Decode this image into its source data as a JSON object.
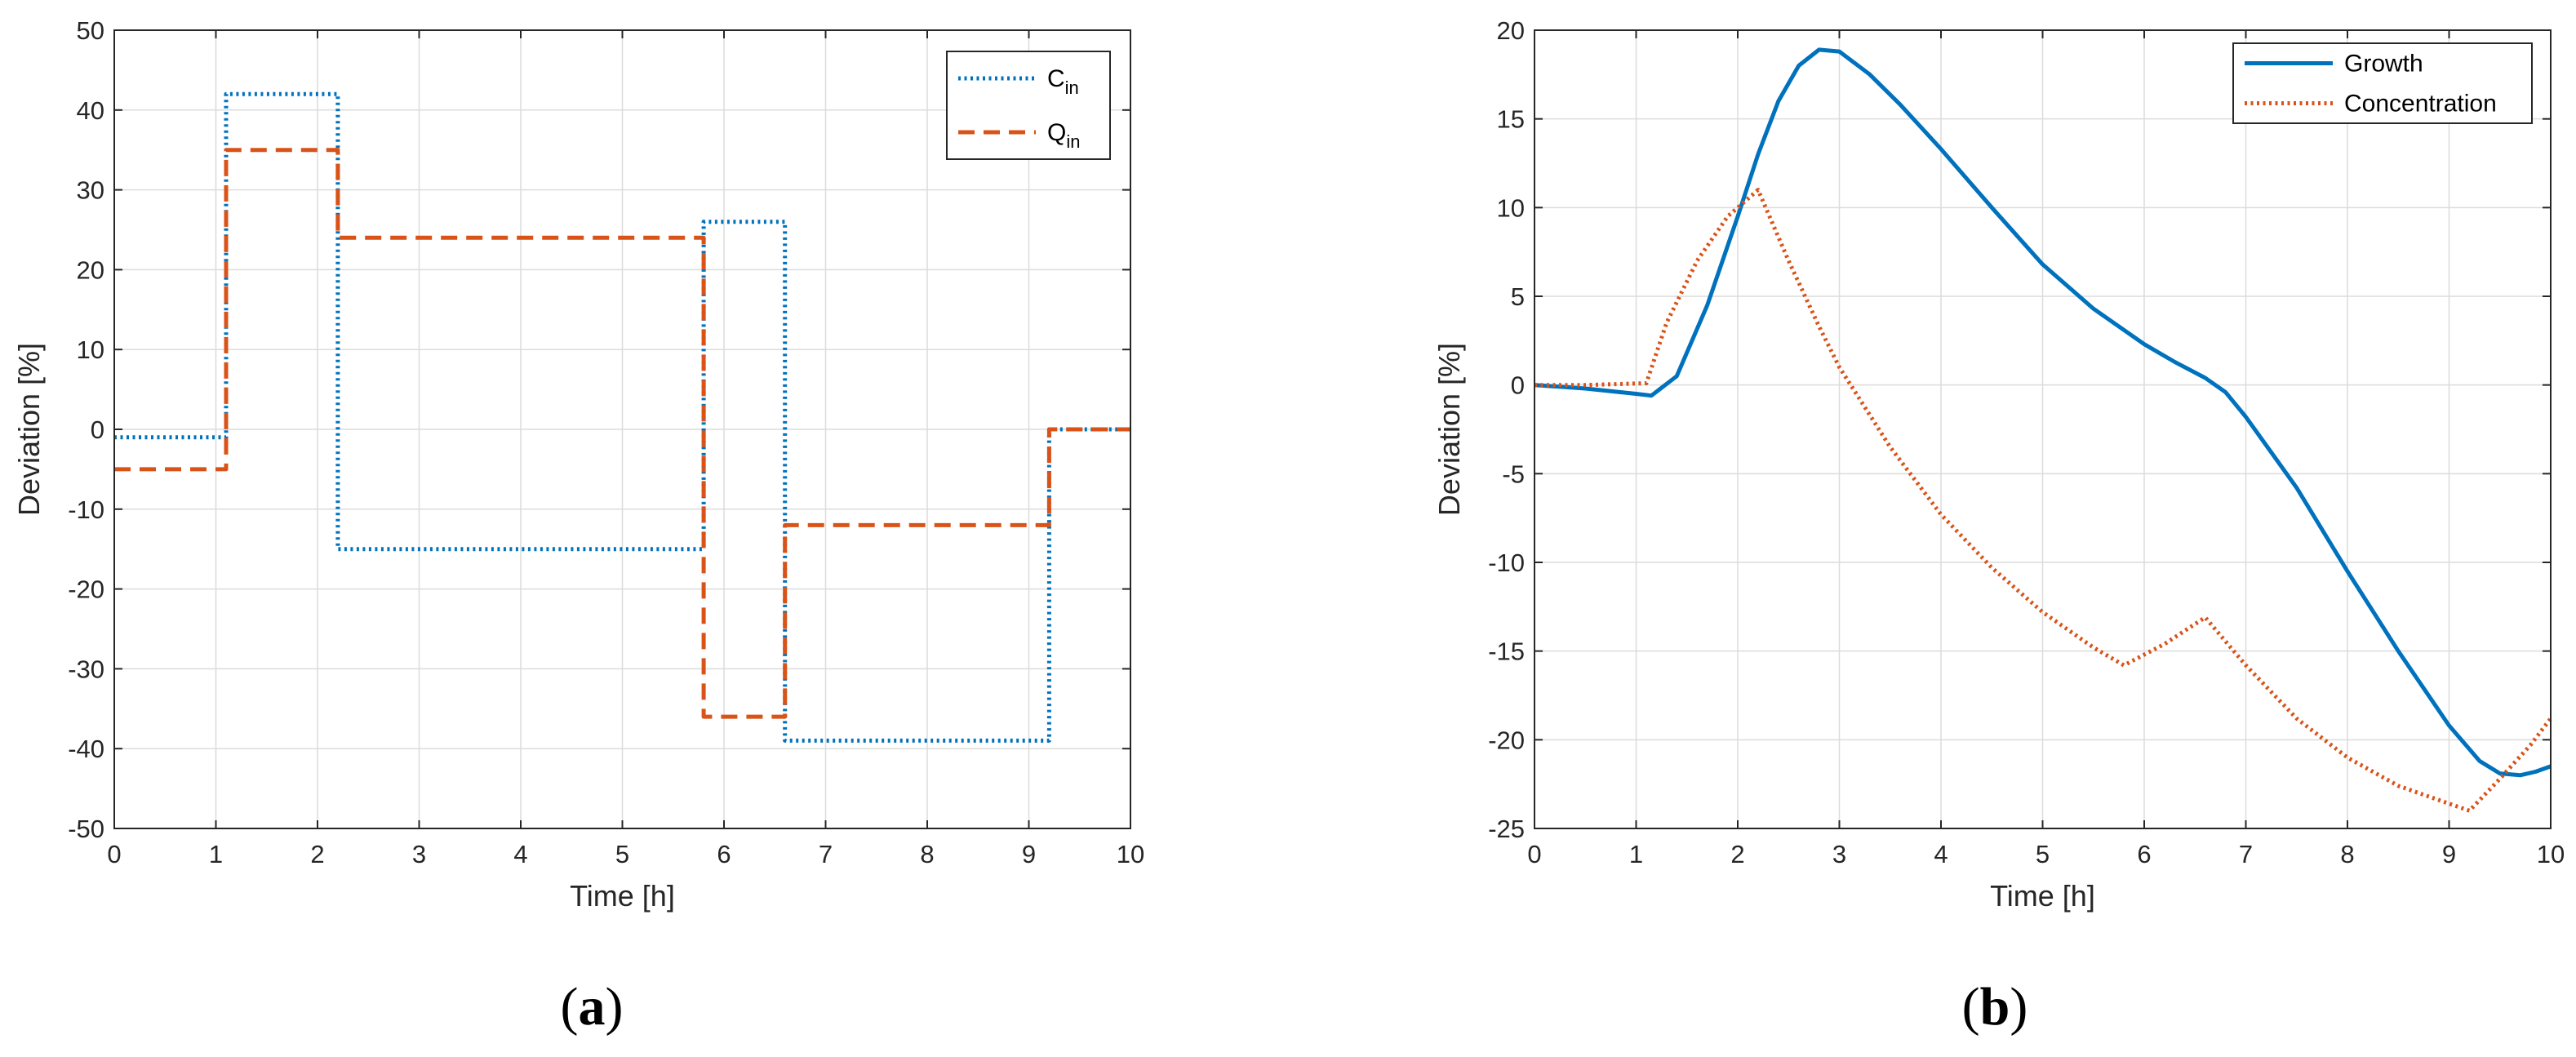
{
  "chart_data": [
    {
      "type": "line",
      "panel_label": "a",
      "xlabel": "Time [h]",
      "ylabel": "Deviation [%]",
      "xlim": [
        0,
        10
      ],
      "ylim": [
        -50,
        50
      ],
      "xticks": [
        0,
        1,
        2,
        3,
        4,
        5,
        6,
        7,
        8,
        9,
        10
      ],
      "yticks": [
        -50,
        -40,
        -30,
        -20,
        -10,
        0,
        10,
        20,
        30,
        40,
        50
      ],
      "grid": true,
      "legend_position": "top-right",
      "series": [
        {
          "name": "C",
          "name_subscript": "in",
          "style": "dotted",
          "color": "#0072BD",
          "x": [
            0,
            1.1,
            1.1,
            2.2,
            2.2,
            5.8,
            5.8,
            6.6,
            6.6,
            9.2,
            9.2,
            10
          ],
          "y": [
            -1,
            -1,
            42,
            42,
            -15,
            -15,
            26,
            26,
            -39,
            -39,
            0,
            0
          ]
        },
        {
          "name": "Q",
          "name_subscript": "in",
          "style": "dashed",
          "color": "#D95319",
          "x": [
            0,
            1.1,
            1.1,
            2.2,
            2.2,
            5.8,
            5.8,
            6.6,
            6.6,
            9.2,
            9.2,
            10
          ],
          "y": [
            -5,
            -5,
            35,
            35,
            24,
            24,
            -36,
            -36,
            -12,
            -12,
            0,
            0
          ]
        }
      ]
    },
    {
      "type": "line",
      "panel_label": "b",
      "xlabel": "Time [h]",
      "ylabel": "Deviation [%]",
      "xlim": [
        0,
        10
      ],
      "ylim": [
        -25,
        20
      ],
      "xticks": [
        0,
        1,
        2,
        3,
        4,
        5,
        6,
        7,
        8,
        9,
        10
      ],
      "yticks": [
        -25,
        -20,
        -15,
        -10,
        -5,
        0,
        5,
        10,
        15,
        20
      ],
      "grid": true,
      "legend_position": "top-right",
      "series": [
        {
          "name": "Growth",
          "style": "solid",
          "color": "#0072BD",
          "x": [
            0,
            0.5,
            1.0,
            1.15,
            1.4,
            1.7,
            2.0,
            2.2,
            2.4,
            2.6,
            2.8,
            3.0,
            3.3,
            3.6,
            4.0,
            4.5,
            5.0,
            5.5,
            6.0,
            6.3,
            6.6,
            6.8,
            7.0,
            7.5,
            8.0,
            8.5,
            9.0,
            9.3,
            9.5,
            9.7,
            9.85,
            10.0
          ],
          "y": [
            0,
            -0.2,
            -0.5,
            -0.6,
            0.5,
            4.5,
            9.5,
            13.0,
            16.0,
            18.0,
            18.9,
            18.8,
            17.5,
            15.8,
            13.3,
            10.0,
            6.8,
            4.3,
            2.3,
            1.3,
            0.4,
            -0.4,
            -1.8,
            -5.8,
            -10.5,
            -15.0,
            -19.2,
            -21.2,
            -21.9,
            -22.0,
            -21.8,
            -21.5
          ]
        },
        {
          "name": "Concentration",
          "style": "dotted",
          "color": "#D95319",
          "x": [
            0,
            0.5,
            1.1,
            1.3,
            1.6,
            1.9,
            2.2,
            2.5,
            2.8,
            3.0,
            3.5,
            4.0,
            4.5,
            5.0,
            5.5,
            5.8,
            6.2,
            6.6,
            7.0,
            7.5,
            8.0,
            8.5,
            9.0,
            9.2,
            9.5,
            9.8,
            10.0
          ],
          "y": [
            0,
            0,
            0.1,
            3.5,
            7.0,
            9.5,
            11.0,
            7.0,
            3.3,
            1.0,
            -3.5,
            -7.3,
            -10.3,
            -12.8,
            -14.8,
            -15.8,
            -14.6,
            -13.1,
            -15.8,
            -18.8,
            -21.0,
            -22.6,
            -23.6,
            -24.0,
            -22.2,
            -20.3,
            -18.8
          ]
        }
      ]
    }
  ]
}
